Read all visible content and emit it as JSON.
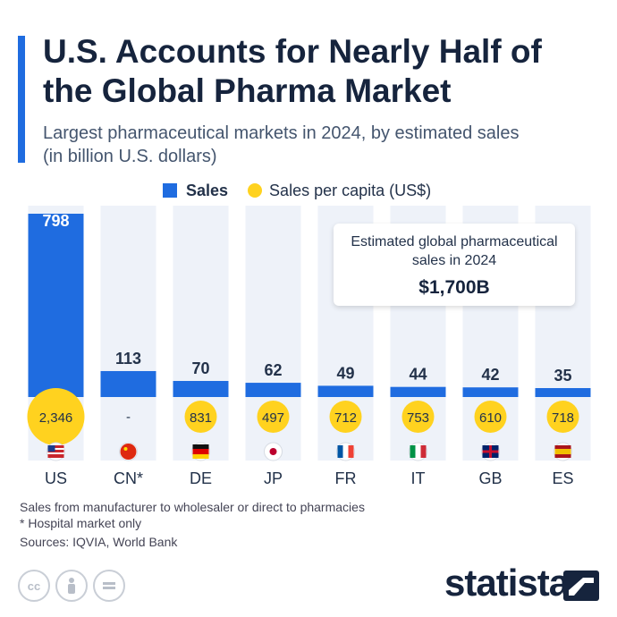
{
  "title": "U.S. Accounts for Nearly Half of the Global Pharma Market",
  "subtitle": "Largest pharmaceutical markets in 2024, by estimated sales (in billion U.S. dollars)",
  "legend": {
    "sales": "Sales",
    "per_capita": "Sales per capita (US$)"
  },
  "callout": {
    "label": "Estimated global pharmaceutical sales in 2024",
    "value": "$1,700B"
  },
  "notes": {
    "line1": "Sales from manufacturer to wholesaler or direct to pharmacies",
    "line2": "* Hospital market only",
    "sources": "Sources: IQVIA, World Bank"
  },
  "brand": "statista",
  "license_icons": [
    "cc-icon",
    "attribution-icon",
    "no-derivatives-icon"
  ],
  "colors": {
    "bar": "#1f6ce0",
    "highlight_column": "#eef2f9",
    "per_capita_dot": "#ffd21f",
    "title": "#16243d"
  },
  "chart_data": {
    "type": "bar",
    "categories": [
      "US",
      "CN*",
      "DE",
      "JP",
      "FR",
      "IT",
      "GB",
      "ES"
    ],
    "series": [
      {
        "name": "Sales",
        "values": [
          798,
          113,
          70,
          62,
          49,
          44,
          42,
          35
        ]
      },
      {
        "name": "Sales per capita (US$)",
        "values": [
          2346,
          null,
          831,
          497,
          712,
          753,
          610,
          718
        ],
        "labels": [
          "2,346",
          "-",
          "831",
          "497",
          "712",
          "753",
          "610",
          "718"
        ]
      }
    ],
    "flags": [
      "us-flag-icon",
      "cn-flag-icon",
      "de-flag-icon",
      "jp-flag-icon",
      "fr-flag-icon",
      "it-flag-icon",
      "gb-flag-icon",
      "es-flag-icon"
    ],
    "legend_position": "top",
    "grid": false
  }
}
